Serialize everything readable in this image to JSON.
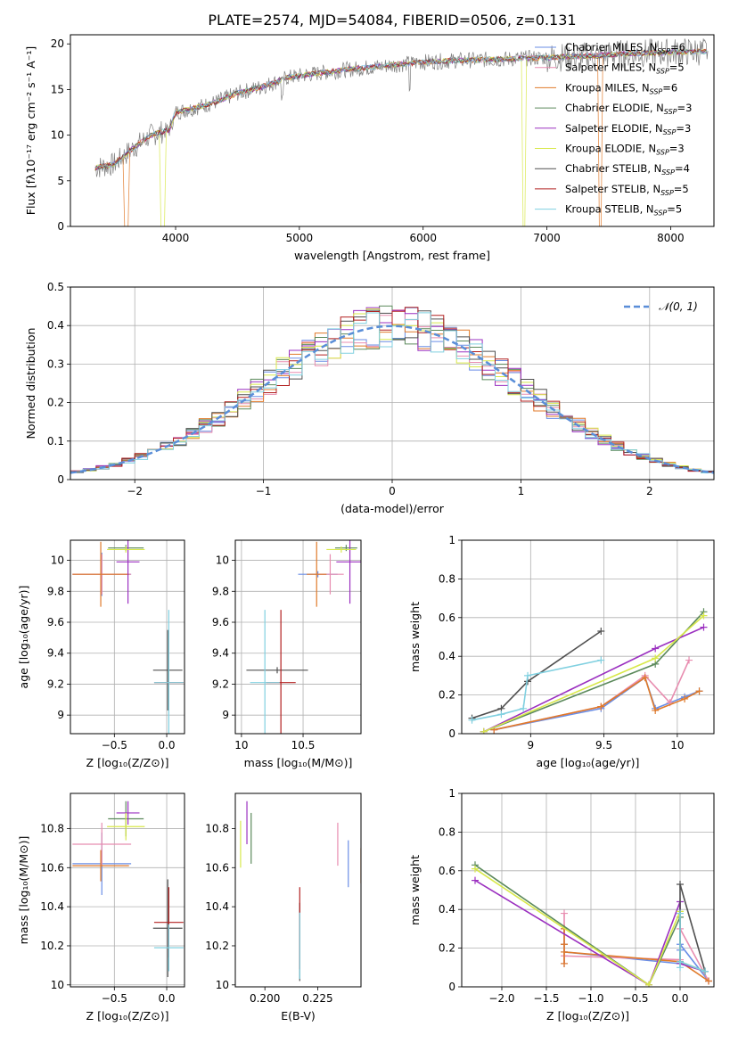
{
  "figure_title": "PLATE=2574, MJD=54084, FIBERID=0506, z=0.131",
  "colors": {
    "c1": "#6a8ee6",
    "c2": "#e88db0",
    "c3": "#e07a2a",
    "c4": "#5c8a5c",
    "c5": "#9b30c0",
    "c6": "#d8e84a",
    "c7": "#505050",
    "c8": "#b22020",
    "c9": "#80d0e0",
    "normal": "#5a8ed8"
  },
  "chart_data": [
    {
      "id": "spectrum",
      "type": "line",
      "title": "PLATE=2574, MJD=54084, FIBERID=0506, z=0.131",
      "xlabel": "wavelength [Angstrom, rest frame]",
      "ylabel": "Flux [fλ10⁻¹⁷ erg cm⁻² s⁻¹ A⁻¹]",
      "xlim": [
        3150,
        8350
      ],
      "ylim": [
        0,
        21
      ],
      "xticks": [
        4000,
        5000,
        6000,
        7000,
        8000
      ],
      "yticks": [
        0,
        5,
        10,
        15,
        20
      ],
      "grid": false,
      "legend_position": "top-right",
      "legend": [
        {
          "name": "Chabrier MILES, N",
          "sub": "SSP",
          "suffix": "=6",
          "color": "c1"
        },
        {
          "name": "Salpeter MILES, N",
          "sub": "SSP",
          "suffix": "=5",
          "color": "c2"
        },
        {
          "name": "Kroupa MILES, N",
          "sub": "SSP",
          "suffix": "=6",
          "color": "c3"
        },
        {
          "name": "Chabrier ELODIE, N",
          "sub": "SSP",
          "suffix": "=3",
          "color": "c4"
        },
        {
          "name": "Salpeter ELODIE, N",
          "sub": "SSP",
          "suffix": "=3",
          "color": "c5"
        },
        {
          "name": "Kroupa ELODIE, N",
          "sub": "SSP",
          "suffix": "=3",
          "color": "c6"
        },
        {
          "name": "Chabrier STELIB, N",
          "sub": "SSP",
          "suffix": "=4",
          "color": "c7"
        },
        {
          "name": "Salpeter STELIB, N",
          "sub": "SSP",
          "suffix": "=5",
          "color": "c8"
        },
        {
          "name": "Kroupa STELIB, N",
          "sub": "SSP",
          "suffix": "=5",
          "color": "c9"
        }
      ],
      "continuum": [
        [
          3350,
          6.4
        ],
        [
          3500,
          6.8
        ],
        [
          3650,
          8.5
        ],
        [
          3800,
          10.0
        ],
        [
          3950,
          10.6
        ],
        [
          4000,
          12.5
        ],
        [
          4100,
          12.8
        ],
        [
          4300,
          13.5
        ],
        [
          4500,
          14.6
        ],
        [
          4700,
          15.3
        ],
        [
          4900,
          16.3
        ],
        [
          5100,
          16.7
        ],
        [
          5400,
          17.2
        ],
        [
          5700,
          17.6
        ],
        [
          6000,
          18.0
        ],
        [
          6300,
          18.2
        ],
        [
          6600,
          18.3
        ],
        [
          7000,
          18.5
        ],
        [
          7400,
          18.7
        ],
        [
          7600,
          18.9
        ],
        [
          8300,
          19.2
        ]
      ],
      "model_cutoffs": [
        {
          "color": "c3",
          "end": 3620
        },
        {
          "color": "c6",
          "end": 3920
        },
        {
          "color": "c6",
          "start": 6800
        },
        {
          "color": "c3",
          "start": 7420
        }
      ]
    },
    {
      "id": "residuals",
      "type": "line",
      "xlabel": "(data-model)/error",
      "ylabel": "Normed distribution",
      "xlim": [
        -2.5,
        2.5
      ],
      "ylim": [
        0,
        0.5
      ],
      "xticks": [
        -2,
        -1,
        0,
        1,
        2
      ],
      "yticks": [
        0.0,
        0.1,
        0.2,
        0.3,
        0.4,
        0.5
      ],
      "grid": true,
      "legend_position": "top-right",
      "legend_label": "𝒩(0, 1)",
      "bin_width": 0.1,
      "histogram_colors": [
        "c1",
        "c2",
        "c3",
        "c4",
        "c5",
        "c6",
        "c7",
        "c8",
        "c9"
      ],
      "gaussian": {
        "mean": 0,
        "sigma": 1
      }
    },
    {
      "id": "age_vs_Z",
      "type": "scatter",
      "xlabel": "Z [log₁₀(Z/Z⊙)]",
      "ylabel": "age  [log₁₀(age/yr)]",
      "xlim": [
        -0.92,
        0.17
      ],
      "ylim": [
        8.88,
        10.13
      ],
      "xticks": [
        -0.5,
        0.0
      ],
      "xticklabels": [
        "−0.5",
        "0.0"
      ],
      "yticks": [
        9.0,
        9.2,
        9.4,
        9.6,
        9.8,
        10.0
      ],
      "grid": true,
      "points": [
        {
          "x": -0.62,
          "xerr": 0.28,
          "y": 9.91,
          "yerr": 0.14,
          "color": "c1"
        },
        {
          "x": -0.62,
          "xerr": 0.28,
          "y": 9.91,
          "yerr": 0.13,
          "color": "c2"
        },
        {
          "x": -0.63,
          "xerr": 0.27,
          "y": 9.91,
          "yerr": 0.21,
          "color": "c3"
        },
        {
          "x": -0.39,
          "xerr": 0.17,
          "y": 10.08,
          "yerr": 0.02,
          "color": "c4"
        },
        {
          "x": -0.37,
          "xerr": 0.11,
          "y": 9.99,
          "yerr": 0.27,
          "color": "c5"
        },
        {
          "x": -0.39,
          "xerr": 0.18,
          "y": 10.07,
          "yerr": 0.02,
          "color": "c6"
        },
        {
          "x": 0.01,
          "xerr": 0.14,
          "y": 9.29,
          "yerr": 0.26,
          "color": "c7"
        },
        {
          "x": 0.02,
          "xerr": 0.14,
          "y": 9.21,
          "yerr": 0.01,
          "color": "c8"
        },
        {
          "x": 0.02,
          "xerr": 0.14,
          "y": 9.21,
          "yerr": 0.47,
          "color": "c9"
        }
      ]
    },
    {
      "id": "age_vs_mass",
      "type": "scatter",
      "xlabel": "mass [log₁₀(M/M⊙)]",
      "ylabel": "",
      "xlim": [
        9.95,
        10.97
      ],
      "ylim": [
        8.88,
        10.13
      ],
      "xticks": [
        10.0,
        10.5
      ],
      "yticks": [
        9.0,
        9.2,
        9.4,
        9.6,
        9.8,
        10.0
      ],
      "grid": true,
      "points": [
        {
          "x": 10.62,
          "xerr": 0.16,
          "y": 9.91,
          "yerr": 0.02,
          "color": "c1"
        },
        {
          "x": 10.72,
          "xerr": 0.11,
          "y": 9.91,
          "yerr": 0.13,
          "color": "c2"
        },
        {
          "x": 10.61,
          "xerr": 0.08,
          "y": 9.91,
          "yerr": 0.21,
          "color": "c3"
        },
        {
          "x": 10.85,
          "xerr": 0.09,
          "y": 10.08,
          "yerr": 0.02,
          "color": "c4"
        },
        {
          "x": 10.88,
          "xerr": 0.11,
          "y": 9.99,
          "yerr": 0.27,
          "color": "c5"
        },
        {
          "x": 10.81,
          "xerr": 0.12,
          "y": 10.07,
          "yerr": 0.02,
          "color": "c6"
        },
        {
          "x": 10.29,
          "xerr": 0.25,
          "y": 9.29,
          "yerr": 0.02,
          "color": "c7"
        },
        {
          "x": 10.32,
          "xerr": 0.12,
          "y": 9.21,
          "yerr": 0.47,
          "color": "c8"
        },
        {
          "x": 10.19,
          "xerr": 0.12,
          "y": 9.21,
          "yerr": 0.47,
          "color": "c9"
        }
      ]
    },
    {
      "id": "massweight_vs_age",
      "type": "line",
      "xlabel": "age  [log₁₀(age/yr)]",
      "ylabel": "mass weight",
      "xlim": [
        8.53,
        10.25
      ],
      "ylim": [
        0,
        1.0
      ],
      "xticks": [
        9.0,
        9.5,
        10.0
      ],
      "yticks": [
        0.0,
        0.2,
        0.4,
        0.6,
        0.8,
        1.0
      ],
      "grid": true,
      "series": [
        {
          "color": "c1",
          "points": [
            [
              8.75,
              0.02
            ],
            [
              9.48,
              0.13
            ],
            [
              9.78,
              0.29
            ],
            [
              9.85,
              0.13
            ],
            [
              10.05,
              0.19
            ],
            [
              10.15,
              0.22
            ]
          ]
        },
        {
          "color": "c2",
          "points": [
            [
              8.75,
              0.02
            ],
            [
              9.48,
              0.14
            ],
            [
              9.78,
              0.3
            ],
            [
              9.95,
              0.16
            ],
            [
              10.08,
              0.38
            ]
          ]
        },
        {
          "color": "c3",
          "points": [
            [
              8.75,
              0.02
            ],
            [
              9.48,
              0.14
            ],
            [
              9.78,
              0.29
            ],
            [
              9.85,
              0.12
            ],
            [
              10.05,
              0.18
            ],
            [
              10.15,
              0.22
            ]
          ]
        },
        {
          "color": "c4",
          "points": [
            [
              8.68,
              0.01
            ],
            [
              9.85,
              0.36
            ],
            [
              10.18,
              0.63
            ]
          ]
        },
        {
          "color": "c5",
          "points": [
            [
              8.68,
              0.01
            ],
            [
              9.85,
              0.44
            ],
            [
              10.18,
              0.55
            ]
          ]
        },
        {
          "color": "c6",
          "points": [
            [
              8.68,
              0.01
            ],
            [
              9.85,
              0.39
            ],
            [
              10.18,
              0.61
            ]
          ]
        },
        {
          "color": "c7",
          "points": [
            [
              8.6,
              0.08
            ],
            [
              8.8,
              0.13
            ],
            [
              8.98,
              0.27
            ],
            [
              9.48,
              0.53
            ]
          ]
        },
        {
          "color": "c9",
          "points": [
            [
              8.6,
              0.07
            ],
            [
              8.8,
              0.1
            ],
            [
              8.95,
              0.13
            ],
            [
              8.98,
              0.3
            ],
            [
              9.48,
              0.38
            ]
          ]
        }
      ]
    },
    {
      "id": "mass_vs_Z",
      "type": "scatter",
      "xlabel": "Z [log₁₀(Z/Z⊙)]",
      "ylabel": "mass [log₁₀(M/M⊙)]",
      "xlim": [
        -0.92,
        0.17
      ],
      "ylim": [
        9.99,
        10.98
      ],
      "xticks": [
        -0.5,
        0.0
      ],
      "xticklabels": [
        "−0.5",
        "0.0"
      ],
      "yticks": [
        10.0,
        10.2,
        10.4,
        10.6,
        10.8
      ],
      "grid": true,
      "points": [
        {
          "x": -0.62,
          "xerr": 0.28,
          "y": 10.62,
          "yerr": 0.16,
          "color": "c1"
        },
        {
          "x": -0.62,
          "xerr": 0.28,
          "y": 10.72,
          "yerr": 0.11,
          "color": "c2"
        },
        {
          "x": -0.63,
          "xerr": 0.27,
          "y": 10.61,
          "yerr": 0.08,
          "color": "c3"
        },
        {
          "x": -0.39,
          "xerr": 0.17,
          "y": 10.85,
          "yerr": 0.09,
          "color": "c4"
        },
        {
          "x": -0.37,
          "xerr": 0.11,
          "y": 10.88,
          "yerr": 0.06,
          "color": "c5"
        },
        {
          "x": -0.39,
          "xerr": 0.18,
          "y": 10.81,
          "yerr": 0.07,
          "color": "c6"
        },
        {
          "x": 0.01,
          "xerr": 0.14,
          "y": 10.29,
          "yerr": 0.25,
          "color": "c7"
        },
        {
          "x": 0.02,
          "xerr": 0.14,
          "y": 10.32,
          "yerr": 0.18,
          "color": "c8"
        },
        {
          "x": 0.02,
          "xerr": 0.14,
          "y": 10.19,
          "yerr": 0.12,
          "color": "c9"
        }
      ]
    },
    {
      "id": "mass_vs_ebv",
      "type": "scatter",
      "xlabel": "E(B-V)",
      "ylabel": "",
      "xlim": [
        0.186,
        0.2455
      ],
      "ylim": [
        9.99,
        10.98
      ],
      "xticks": [
        0.2,
        0.225
      ],
      "xticklabels": [
        "0.200",
        "0.225"
      ],
      "yticks": [
        10.0,
        10.2,
        10.4,
        10.6,
        10.8
      ],
      "grid": false,
      "points": [
        {
          "x": 0.2395,
          "y": 10.62,
          "yerr": 0.12,
          "color": "c1"
        },
        {
          "x": 0.2345,
          "y": 10.72,
          "yerr": 0.11,
          "color": "c2"
        },
        {
          "x": 0.2455,
          "y": 10.61,
          "yerr": 0.09,
          "color": "c3"
        },
        {
          "x": 0.1935,
          "y": 10.75,
          "yerr": 0.13,
          "color": "c4"
        },
        {
          "x": 0.1915,
          "y": 10.83,
          "yerr": 0.11,
          "color": "c5"
        },
        {
          "x": 0.1885,
          "y": 10.72,
          "yerr": 0.12,
          "color": "c6"
        },
        {
          "x": 0.2165,
          "y": 10.22,
          "yerr": 0.2,
          "color": "c7"
        },
        {
          "x": 0.2165,
          "y": 10.29,
          "yerr": 0.21,
          "color": "c8"
        },
        {
          "x": 0.2165,
          "y": 10.2,
          "yerr": 0.17,
          "color": "c9"
        }
      ]
    },
    {
      "id": "massweight_vs_Z",
      "type": "line",
      "xlabel": "Z [log₁₀(Z/Z⊙)]",
      "ylabel": "mass weight",
      "xlim": [
        -2.45,
        0.38
      ],
      "ylim": [
        0,
        1.0
      ],
      "xticks": [
        -2.0,
        -1.5,
        -1.0,
        -0.5,
        0.0
      ],
      "xticklabels": [
        "−2.0",
        "−1.5",
        "−1.0",
        "−0.5",
        "0.0"
      ],
      "yticks": [
        0.0,
        0.2,
        0.4,
        0.6,
        0.8,
        1.0
      ],
      "grid": true,
      "series": [
        {
          "color": "c1",
          "points": [
            [
              -1.3,
              0.12
            ],
            [
              -1.3,
              0.22
            ],
            [
              -1.3,
              0.3
            ],
            [
              -1.3,
              0.18
            ],
            [
              0.0,
              0.12
            ],
            [
              0.0,
              0.19
            ],
            [
              0.0,
              0.38
            ],
            [
              0.0,
              0.22
            ],
            [
              0.32,
              0.03
            ]
          ]
        },
        {
          "color": "c2",
          "points": [
            [
              -1.3,
              0.12
            ],
            [
              -1.3,
              0.38
            ],
            [
              -1.3,
              0.16
            ],
            [
              0.0,
              0.14
            ],
            [
              0.0,
              0.3
            ],
            [
              0.32,
              0.03
            ]
          ]
        },
        {
          "color": "c3",
          "points": [
            [
              -1.3,
              0.12
            ],
            [
              -1.3,
              0.22
            ],
            [
              -1.3,
              0.3
            ],
            [
              -1.3,
              0.18
            ],
            [
              0.0,
              0.13
            ],
            [
              0.32,
              0.03
            ]
          ]
        },
        {
          "color": "c4",
          "points": [
            [
              -2.3,
              0.63
            ],
            [
              -0.35,
              0.01
            ],
            [
              0.0,
              0.36
            ],
            [
              0.0,
              0.13
            ],
            [
              0.28,
              0.08
            ]
          ]
        },
        {
          "color": "c5",
          "points": [
            [
              -2.3,
              0.55
            ],
            [
              -0.35,
              0.01
            ],
            [
              0.0,
              0.44
            ],
            [
              0.0,
              0.12
            ],
            [
              0.28,
              0.08
            ]
          ]
        },
        {
          "color": "c6",
          "points": [
            [
              -2.3,
              0.61
            ],
            [
              -0.35,
              0.01
            ],
            [
              0.0,
              0.39
            ],
            [
              0.0,
              0.13
            ],
            [
              0.28,
              0.08
            ]
          ]
        },
        {
          "color": "c7",
          "points": [
            [
              0.0,
              0.13
            ],
            [
              0.0,
              0.53
            ],
            [
              0.28,
              0.08
            ]
          ]
        },
        {
          "color": "c9",
          "points": [
            [
              0.0,
              0.1
            ],
            [
              0.0,
              0.38
            ],
            [
              0.0,
              0.13
            ],
            [
              0.28,
              0.08
            ]
          ]
        }
      ]
    }
  ]
}
